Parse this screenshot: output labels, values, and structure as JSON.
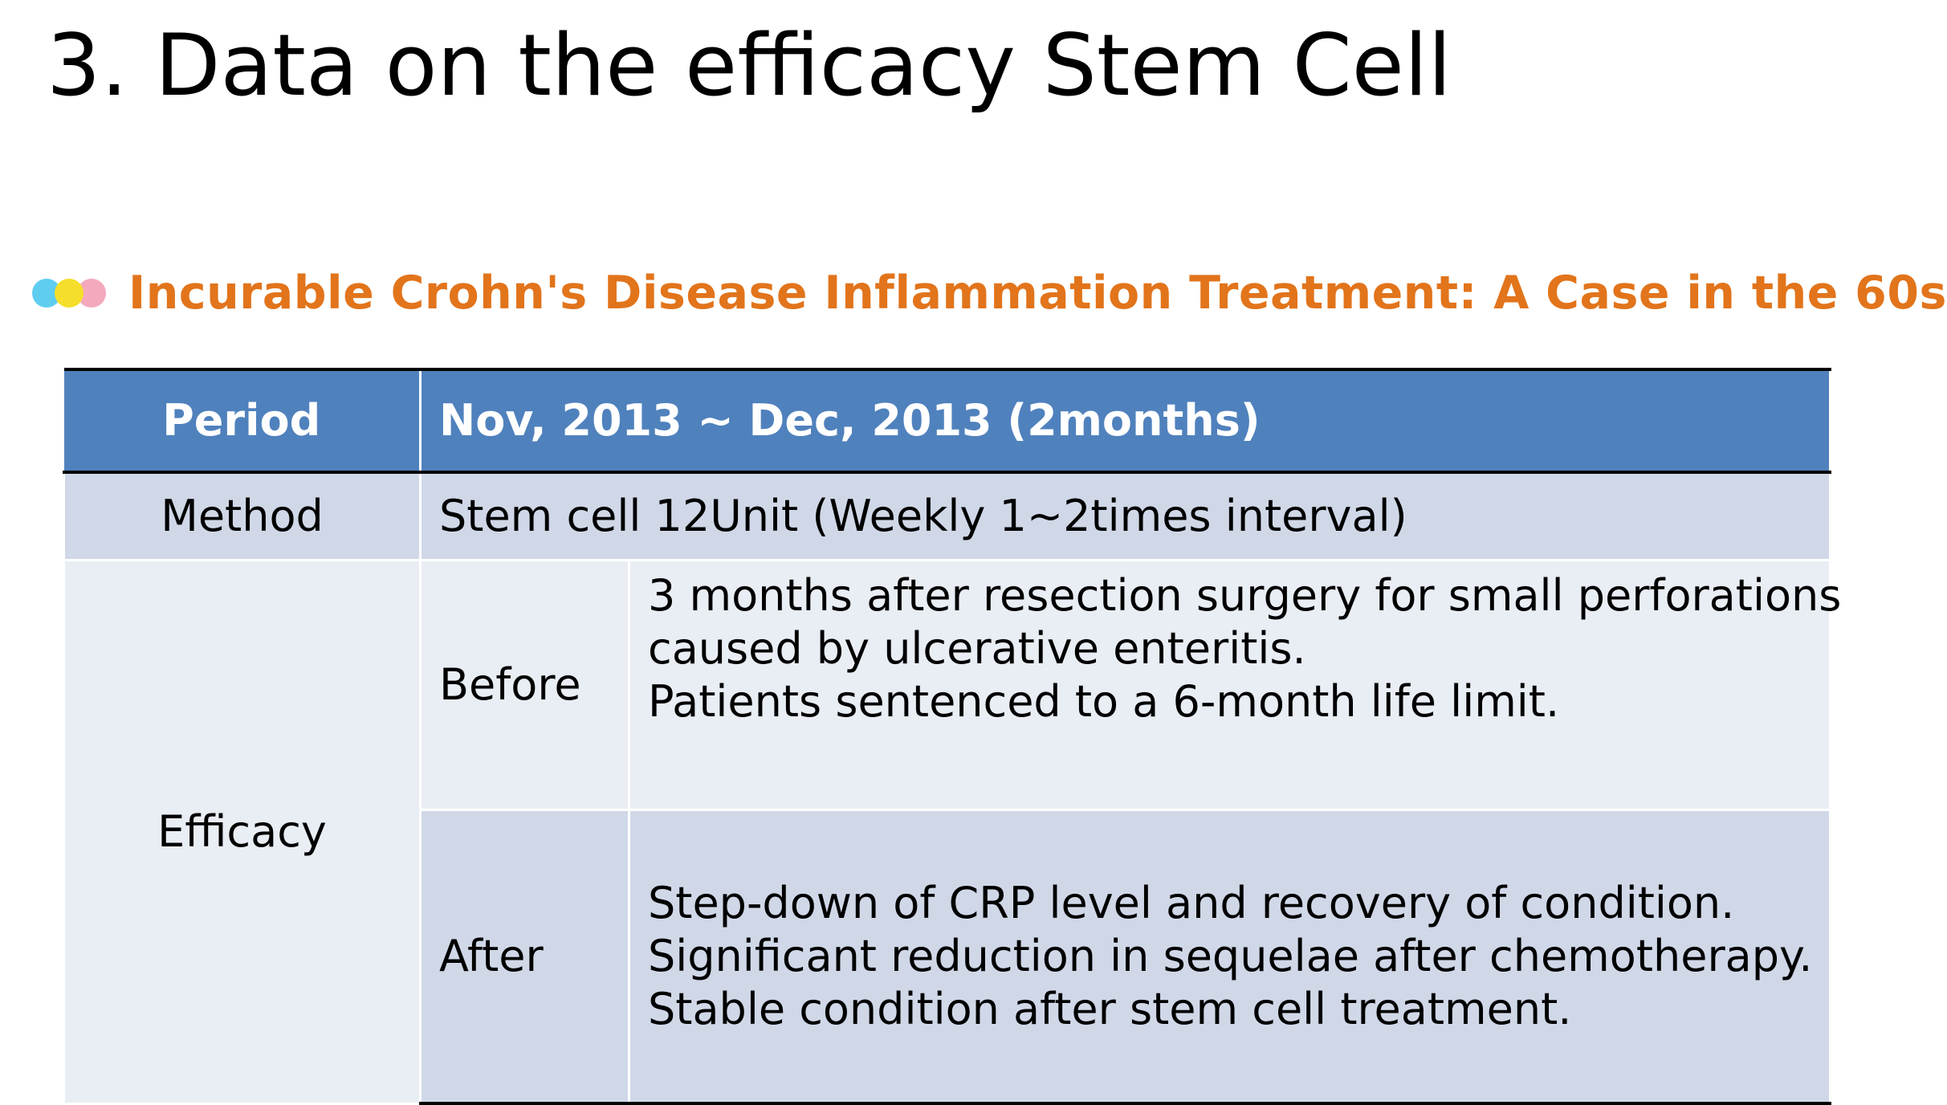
{
  "slide": {
    "title": "3. Data on the efficacy Stem Cell"
  },
  "subtitle": {
    "text": "Incurable Crohn's Disease Inflammation Treatment: A Case in the 60s",
    "icon": "three-dots-icon",
    "colors": {
      "text": "#e2741b",
      "dot_1": "#5fcdf0",
      "dot_2": "#f5df2a",
      "dot_3": "#f4a9bd"
    }
  },
  "table": {
    "colors": {
      "header_bg": "#4f81bd",
      "band_dark": "#d0d8e8",
      "band_light": "#e9edf4"
    },
    "header": {
      "label": "Period",
      "value": "Nov, 2013 ~ Dec, 2013 (2months)"
    },
    "method": {
      "label": "Method",
      "value": "Stem cell 12Unit (Weekly 1~2times interval)"
    },
    "efficacy": {
      "label": "Efficacy",
      "before": {
        "label": "Before",
        "lines": [
          "3 months after resection surgery for small perforations",
          "caused by ulcerative enteritis.",
          "Patients sentenced to a 6-month life limit."
        ]
      },
      "after": {
        "label": "After",
        "lines": [
          "Step-down of CRP level and recovery of condition.",
          "Significant reduction in sequelae after chemotherapy.",
          "Stable condition after stem cell treatment."
        ]
      }
    }
  }
}
